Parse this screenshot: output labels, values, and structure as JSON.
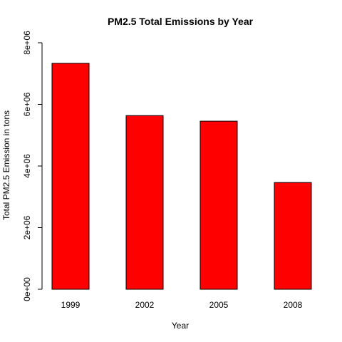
{
  "chart_data": {
    "type": "bar",
    "title": "PM2.5 Total Emissions by Year",
    "xlabel": "Year",
    "ylabel": "Total PM2.5 Emission in tons",
    "categories": [
      "1999",
      "2002",
      "2005",
      "2008"
    ],
    "values": [
      7332967,
      5635780,
      5454703,
      3464206
    ],
    "ylim": [
      0,
      8000000
    ],
    "yticks": [
      0,
      2000000,
      4000000,
      6000000,
      8000000
    ],
    "ytick_labels": [
      "0e+00",
      "2e+06",
      "4e+06",
      "6e+06",
      "8e+06"
    ],
    "bar_color": "#ff0000",
    "bar_border_color": "#000000",
    "grid": false,
    "legend": "none"
  }
}
